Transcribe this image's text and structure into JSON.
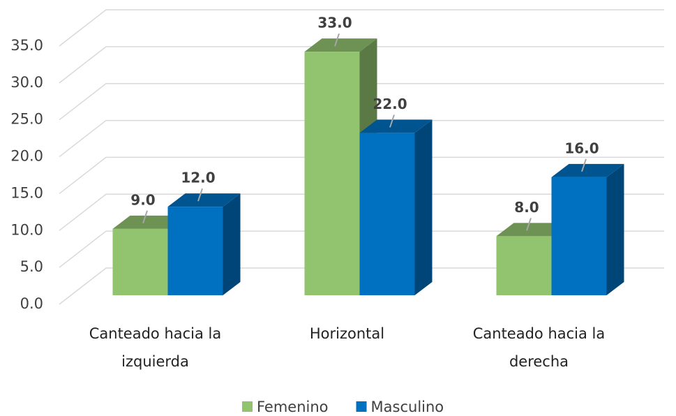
{
  "chart_data": {
    "type": "bar3d",
    "categories": [
      "Canteado hacia la izquierda",
      "Horizontal",
      "Canteado hacia la derecha"
    ],
    "series": [
      {
        "name": "Femenino",
        "color": "#92c36e",
        "values": [
          9,
          33,
          8
        ],
        "value_labels": [
          "9.0",
          "33.0",
          "8.0"
        ]
      },
      {
        "name": "Masculino",
        "color": "#0070c0",
        "values": [
          12,
          22,
          16
        ],
        "value_labels": [
          "12.0",
          "22.0",
          "16.0"
        ]
      }
    ],
    "ylim": [
      0,
      35
    ],
    "yticks": [
      {
        "value": 0,
        "label": "0.0"
      },
      {
        "value": 5,
        "label": "5.0"
      },
      {
        "value": 10,
        "label": "10.0"
      },
      {
        "value": 15,
        "label": "15.0"
      },
      {
        "value": 20,
        "label": "20.0"
      },
      {
        "value": 25,
        "label": "25.0"
      },
      {
        "value": 30,
        "label": "30.0"
      },
      {
        "value": 35,
        "label": "35.0"
      }
    ],
    "grid": true,
    "legend": "bottom"
  }
}
